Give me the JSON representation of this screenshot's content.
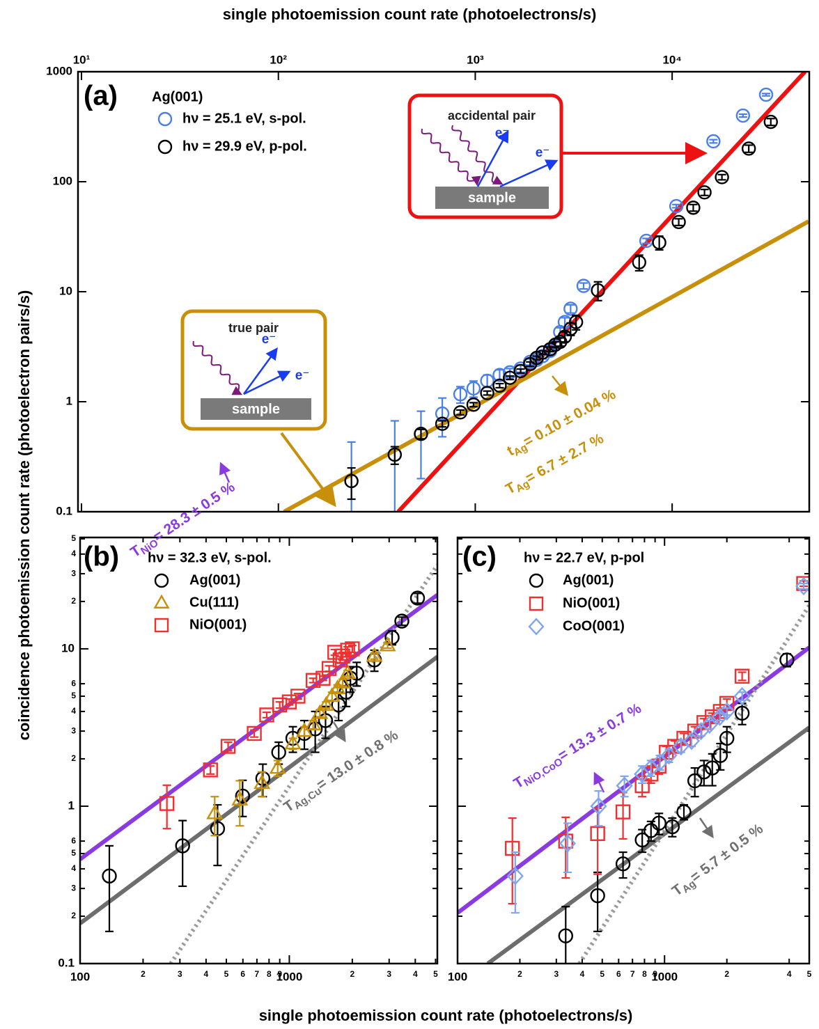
{
  "chart_data": [
    {
      "type": "scatter",
      "panel_label": "(a)",
      "legend_title": "Ag(001)",
      "xlabel": "single photoemission count rate  (photoelectrons/s)",
      "ylabel": "coincidence photoemission count rate  (photoelectron pairs/s)",
      "log_x": true,
      "log_y": true,
      "xaxis": "top",
      "xlim": [
        9.6,
        49700
      ],
      "ylim": [
        0.1,
        1000
      ],
      "xticks": [
        {
          "value": 10,
          "label": "10¹"
        },
        {
          "value": 100,
          "label": "10²"
        },
        {
          "value": 1000,
          "label": "10³"
        },
        {
          "value": 10000,
          "label": "10⁴"
        }
      ],
      "yticks": [
        0.1,
        1,
        10,
        100,
        1000
      ],
      "series": [
        {
          "name": "hν = 25.1 eV, s-pol.",
          "color": "#4a7fe8",
          "marker": "circle",
          "x": [
            235,
            390,
            530,
            680,
            840,
            980,
            1150,
            1330,
            1500,
            1700,
            1900,
            2050,
            2200,
            2400,
            2550,
            2700,
            2850,
            3050,
            3550,
            7400,
            10500,
            16200,
            22900,
            30000
          ],
          "values": [
            0.19,
            0.33,
            0.51,
            0.78,
            1.17,
            1.32,
            1.55,
            1.75,
            1.85,
            2.0,
            2.3,
            2.4,
            2.6,
            2.9,
            3.3,
            4.3,
            5.3,
            7.0,
            11.3,
            29,
            60,
            233,
            399,
            618
          ],
          "errors": [
            0.24,
            0.34,
            0.31,
            0.3,
            0.2,
            0.22,
            0.2,
            0.2,
            0.15,
            0.15,
            0.15,
            0.15,
            0.15,
            0.2,
            0.3,
            0.4,
            0.5,
            0.6,
            0.7,
            1.5,
            2,
            8,
            12,
            15
          ]
        },
        {
          "name": "hν = 29.9 eV, p-pol.",
          "color": "#000000",
          "marker": "circle",
          "x": [
            235,
            390,
            530,
            680,
            840,
            980,
            1150,
            1330,
            1500,
            1700,
            1900,
            2050,
            2200,
            2400,
            2550,
            2700,
            2850,
            3050,
            3250,
            4200,
            6800,
            8600,
            10800,
            12800,
            14600,
            17900,
            24500,
            31700
          ],
          "values": [
            0.19,
            0.33,
            0.51,
            0.63,
            0.8,
            0.94,
            1.2,
            1.4,
            1.65,
            1.9,
            2.2,
            2.5,
            2.8,
            3.0,
            3.3,
            3.5,
            3.9,
            4.6,
            5.3,
            10.3,
            18.5,
            28,
            43,
            58,
            80,
            110,
            200,
            350
          ],
          "errors": [
            0.06,
            0.06,
            0.05,
            0.04,
            0.04,
            0.04,
            0.05,
            0.06,
            0.06,
            0.08,
            0.1,
            0.1,
            0.1,
            0.15,
            0.2,
            0.3,
            0.4,
            0.6,
            0.8,
            2,
            3,
            4,
            3,
            4,
            5,
            6,
            15,
            25
          ]
        }
      ],
      "fits": [
        {
          "color": "#ee1111",
          "style": "solid",
          "x": [
            406,
            47300
          ],
          "values": [
            0.1,
            1000
          ]
        },
        {
          "color": "#c8900a",
          "style": "solid",
          "x": [
            107,
            49300
          ],
          "values": [
            0.1,
            43.6
          ]
        }
      ],
      "annotations": [
        {
          "base": "t",
          "sub": "Ag",
          "rest": "= 0.10 ± 0.04 %",
          "color": "#c8900a"
        },
        {
          "base": "T",
          "sub": "Ag",
          "rest": "= 6.7 ± 2.7 %",
          "color": "#c8900a"
        }
      ],
      "insets": [
        {
          "title": "true pair",
          "electron": "e⁻",
          "surface": "sample",
          "color": "#c8900a"
        },
        {
          "title": "accidental pair",
          "electron": "e⁻",
          "surface": "sample",
          "color": "#ee1111"
        }
      ]
    },
    {
      "type": "scatter",
      "panel_label": "(b)",
      "legend_title": "hν = 32.3 eV, s-pol.",
      "xlabel": "single photoemission count rate  (photoelectrons/s)",
      "log_x": true,
      "log_y": true,
      "xaxis": "bottom",
      "xlim": [
        100,
        5100
      ],
      "ylim": [
        0.1,
        51
      ],
      "xticks": [
        100,
        {
          "value": 200,
          "label": "2"
        },
        {
          "value": 300,
          "label": "3"
        },
        {
          "value": 400,
          "label": "4"
        },
        {
          "value": 500,
          "label": "5"
        },
        {
          "value": 600,
          "label": "6"
        },
        {
          "value": 700,
          "label": "7"
        },
        {
          "value": 800,
          "label": "8"
        },
        {
          "value": 900,
          "label": "9"
        },
        1000,
        {
          "value": 2000,
          "label": "2"
        },
        {
          "value": 3000,
          "label": "3"
        },
        {
          "value": 4000,
          "label": "4"
        },
        {
          "value": 5000,
          "label": "5"
        }
      ],
      "yticks": [
        0.1,
        {
          "value": 0.2,
          "label": "2"
        },
        {
          "value": 0.3,
          "label": "3"
        },
        {
          "value": 0.4,
          "label": "4"
        },
        {
          "value": 0.5,
          "label": "5"
        },
        {
          "value": 0.6,
          "label": "6"
        },
        1,
        {
          "value": 2,
          "label": "2"
        },
        {
          "value": 3,
          "label": "3"
        },
        {
          "value": 4,
          "label": "4"
        },
        {
          "value": 5,
          "label": "5"
        },
        {
          "value": 6,
          "label": "6"
        },
        10,
        {
          "value": 20,
          "label": "2"
        },
        {
          "value": 30,
          "label": "3"
        },
        {
          "value": 40,
          "label": "4"
        },
        {
          "value": 50,
          "label": "5"
        }
      ],
      "series": [
        {
          "name": "Ag(001)",
          "color": "#000000",
          "marker": "circle",
          "x": [
            138,
            309,
            454,
            598,
            747,
            890,
            1040,
            1180,
            1330,
            1490,
            1720,
            1870,
            1960,
            2100,
            2550,
            3100,
            3450,
            4100
          ],
          "values": [
            0.36,
            0.56,
            0.72,
            1.16,
            1.5,
            2.2,
            2.7,
            2.9,
            3.1,
            3.5,
            4.4,
            5.3,
            6.5,
            7.0,
            8.5,
            11.8,
            15,
            21
          ],
          "errors": [
            0.2,
            0.25,
            0.3,
            0.3,
            0.35,
            0.35,
            0.5,
            0.6,
            0.9,
            0.8,
            0.9,
            1,
            1.2,
            1.2,
            1.3,
            1.2,
            0.9,
            1.5
          ]
        },
        {
          "name": "Cu(111)",
          "color": "#c8900a",
          "marker": "triangle",
          "x": [
            440,
            580,
            740,
            880,
            1040,
            1180,
            1300,
            1400,
            1500,
            1600,
            1700,
            1800,
            1900,
            2550,
            2950
          ],
          "values": [
            0.9,
            1.1,
            1.4,
            1.75,
            2.5,
            3.0,
            3.3,
            3.9,
            4.4,
            5.0,
            5.6,
            6.1,
            7.0,
            9.0,
            10.5
          ],
          "errors": [
            0.25,
            0.35,
            0.25,
            0.2,
            0.2,
            0.2,
            0.2,
            0.2,
            0.2,
            0.3,
            0.3,
            0.3,
            0.3,
            0.4,
            0.4
          ]
        },
        {
          "name": "NiO(001)",
          "color": "#f03030",
          "marker": "square",
          "x": [
            260,
            420,
            510,
            680,
            780,
            900,
            1000,
            1100,
            1300,
            1450,
            1550,
            1650,
            1750,
            1800,
            1900,
            2000
          ],
          "values": [
            1.04,
            1.7,
            2.4,
            2.9,
            3.8,
            4.4,
            4.6,
            5.0,
            6.3,
            6.5,
            7.5,
            9.5,
            8.5,
            9.0,
            9.8,
            10.0
          ],
          "errors": [
            0.32,
            0.1,
            0.15,
            0.15,
            0.15,
            0.2,
            0.2,
            0.2,
            0.2,
            0.2,
            0.3,
            0.4,
            0.4,
            0.5,
            0.5,
            0.5
          ]
        }
      ],
      "fits": [
        {
          "color": "#8a3be0",
          "style": "solid",
          "x": [
            100,
            5100
          ],
          "values": [
            0.46,
            22
          ]
        },
        {
          "color": "#6d6d6d",
          "style": "solid",
          "x": [
            100,
            5100
          ],
          "values": [
            0.18,
            8.9
          ]
        },
        {
          "color": "#9a9a9a",
          "style": "dotted",
          "x": [
            271,
            5100
          ],
          "values": [
            0.1,
            34
          ]
        }
      ],
      "annotations": [
        {
          "base": "T",
          "sub": "NiO",
          "rest": "= 28.3 ± 0.5 %",
          "color": "#8a3be0"
        },
        {
          "base": "T",
          "sub": "Ag,Cu",
          "rest": "= 13.0 ± 0.8 %",
          "color": "#707070"
        }
      ]
    },
    {
      "type": "scatter",
      "panel_label": "(c)",
      "legend_title": "hν = 22.7 eV, p-pol",
      "log_x": true,
      "log_y": true,
      "xaxis": "bottom",
      "xlim": [
        100,
        5000
      ],
      "ylim": [
        0.1,
        51
      ],
      "xticks": [
        100,
        {
          "value": 200,
          "label": "2"
        },
        {
          "value": 300,
          "label": "3"
        },
        {
          "value": 400,
          "label": "4"
        },
        {
          "value": 500,
          "label": "5"
        },
        {
          "value": 600,
          "label": "6"
        },
        {
          "value": 700,
          "label": "7"
        },
        {
          "value": 800,
          "label": "8"
        },
        {
          "value": 900,
          "label": "9"
        },
        1000,
        {
          "value": 2000,
          "label": "2"
        },
        {
          "value": 4000,
          "label": "4"
        },
        {
          "value": 5000,
          "label": "5"
        }
      ],
      "series": [
        {
          "name": "Ag(001)",
          "color": "#000000",
          "marker": "circle",
          "x": [
            333,
            475,
            630,
            780,
            860,
            940,
            1090,
            1240,
            1400,
            1550,
            1700,
            1860,
            2000,
            2370,
            3900
          ],
          "values": [
            0.15,
            0.27,
            0.43,
            0.61,
            0.7,
            0.78,
            0.74,
            0.92,
            1.45,
            1.65,
            1.75,
            2.1,
            2.7,
            3.9,
            8.5
          ],
          "errors": [
            0.08,
            0.11,
            0.08,
            0.1,
            0.1,
            0.12,
            0.1,
            0.1,
            0.3,
            0.3,
            0.4,
            0.4,
            0.5,
            0.6,
            0.8
          ]
        },
        {
          "name": "NiO(001)",
          "color": "#f03030",
          "marker": "square",
          "x": [
            184,
            333,
            475,
            630,
            780,
            860,
            940,
            1020,
            1120,
            1240,
            1400,
            1550,
            1700,
            1860,
            2000,
            2370,
            4700
          ],
          "values": [
            0.54,
            0.6,
            0.67,
            0.92,
            1.35,
            1.6,
            1.8,
            2.2,
            2.4,
            2.7,
            3.0,
            3.4,
            3.7,
            4.0,
            4.5,
            6.7,
            26
          ],
          "errors": [
            0.3,
            0.25,
            0.3,
            0.3,
            0.2,
            0.2,
            0.2,
            0.2,
            0.2,
            0.2,
            0.2,
            0.2,
            0.2,
            0.2,
            0.3,
            0.4,
            1
          ]
        },
        {
          "name": "CoO(001)",
          "color": "#7ea6f0",
          "marker": "diamond",
          "x": [
            190,
            340,
            480,
            640,
            780,
            860,
            950,
            1050,
            1200,
            1350,
            1500,
            1650,
            1850,
            2000,
            2370,
            4700
          ],
          "values": [
            0.36,
            0.58,
            1.0,
            1.35,
            1.6,
            1.75,
            1.9,
            2.1,
            2.4,
            2.6,
            3.0,
            3.3,
            3.7,
            4.0,
            5.0,
            25
          ],
          "errors": [
            0.15,
            0.2,
            0.25,
            0.2,
            0.2,
            0.2,
            0.2,
            0.2,
            0.2,
            0.2,
            0.2,
            0.2,
            0.2,
            0.2,
            0.3,
            1
          ]
        }
      ],
      "fits": [
        {
          "color": "#8a3be0",
          "style": "solid",
          "x": [
            100,
            5000
          ],
          "values": [
            0.21,
            10.2
          ]
        },
        {
          "color": "#6d6d6d",
          "style": "solid",
          "x": [
            140,
            5000
          ],
          "values": [
            0.1,
            3.16
          ]
        },
        {
          "color": "#9a9a9a",
          "style": "dotted",
          "x": [
            388,
            5000
          ],
          "values": [
            0.1,
            18.8
          ]
        }
      ],
      "annotations": [
        {
          "base": "T",
          "sub": "NiO,CoO",
          "rest": "= 13.3 ± 0.7 %",
          "color": "#8a3be0"
        },
        {
          "base": "T",
          "sub": "Ag",
          "rest": "= 5.7 ± 0.5 %",
          "color": "#707070"
        }
      ]
    }
  ]
}
